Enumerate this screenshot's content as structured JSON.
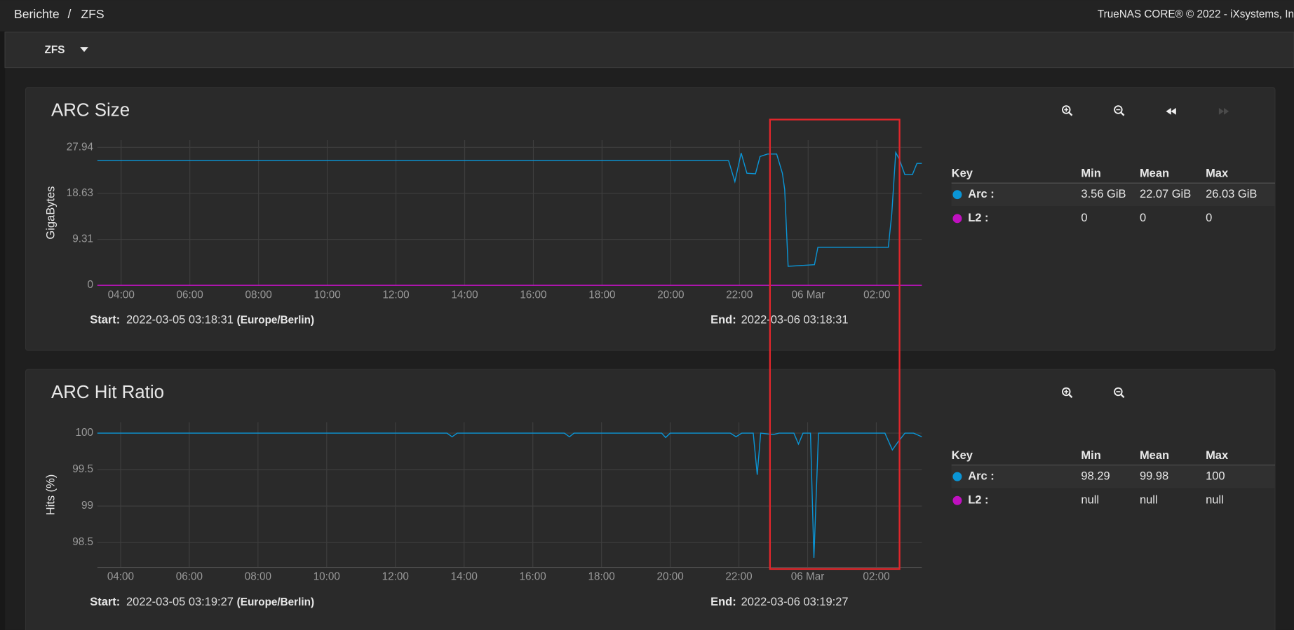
{
  "header": {
    "breadcrumb": [
      "Berichte",
      "ZFS"
    ],
    "separator": "/",
    "copyright": "TrueNAS CORE® © 2022 - iXsystems, In"
  },
  "toolbar": {
    "dropdown": "ZFS"
  },
  "chart_data": [
    {
      "type": "line",
      "title": "ARC Size",
      "y_label": "GigaBytes",
      "grid": true,
      "xlim": [
        "2022-03-05 03:18:31",
        "2022-03-06 03:18:31"
      ],
      "xticks": [
        {
          "value": "2022-03-05 04:00",
          "label": "04:00"
        },
        {
          "value": "2022-03-05 06:00",
          "label": "06:00"
        },
        {
          "value": "2022-03-05 08:00",
          "label": "08:00"
        },
        {
          "value": "2022-03-05 10:00",
          "label": "10:00"
        },
        {
          "value": "2022-03-05 12:00",
          "label": "12:00"
        },
        {
          "value": "2022-03-05 14:00",
          "label": "14:00"
        },
        {
          "value": "2022-03-05 16:00",
          "label": "16:00"
        },
        {
          "value": "2022-03-05 18:00",
          "label": "18:00"
        },
        {
          "value": "2022-03-05 20:00",
          "label": "20:00"
        },
        {
          "value": "2022-03-05 22:00",
          "label": "22:00"
        },
        {
          "value": "2022-03-06 00:00",
          "label": "06 Mar"
        },
        {
          "value": "2022-03-06 02:00",
          "label": "02:00"
        }
      ],
      "ylim": [
        0,
        29.4
      ],
      "yticks": [
        0,
        9.31,
        18.63,
        27.94
      ],
      "x": [
        "2022-03-05 03:18:31",
        "2022-03-05 06:00",
        "2022-03-05 10:00",
        "2022-03-05 14:00",
        "2022-03-05 18:00",
        "2022-03-05 21:30",
        "2022-03-05 21:41",
        "2022-03-05 21:52",
        "2022-03-05 22:03",
        "2022-03-05 22:13",
        "2022-03-05 22:28",
        "2022-03-05 22:36",
        "2022-03-05 22:49",
        "2022-03-05 23:05",
        "2022-03-05 23:15",
        "2022-03-05 23:19",
        "2022-03-05 23:25",
        "2022-03-06 00:11",
        "2022-03-06 00:17",
        "2022-03-06 01:27",
        "2022-03-06 02:20",
        "2022-03-06 02:26",
        "2022-03-06 02:33",
        "2022-03-06 02:39",
        "2022-03-06 02:49",
        "2022-03-06 03:02",
        "2022-03-06 03:10",
        "2022-03-06 03:18:31"
      ],
      "series": [
        {
          "name": "Arc :",
          "color": "#0a95d6",
          "values": [
            25.25,
            25.25,
            25.25,
            25.25,
            25.25,
            25.25,
            25.25,
            21.0,
            26.8,
            22.7,
            22.6,
            26.1,
            26.6,
            26.6,
            22.7,
            19.4,
            3.85,
            4.18,
            7.7,
            7.7,
            7.7,
            14.4,
            26.9,
            25.6,
            22.4,
            22.4,
            24.7,
            24.7
          ]
        },
        {
          "name": "L2 :",
          "color": "#c010c0",
          "values": [
            0,
            0,
            0,
            0,
            0,
            0,
            0,
            0,
            0,
            0,
            0,
            0,
            0,
            0,
            0,
            0,
            0,
            0,
            0,
            0,
            0,
            0,
            0,
            0,
            0,
            0,
            0,
            0
          ]
        }
      ],
      "stats": {
        "columns": [
          "Key",
          "Min",
          "Mean",
          "Max"
        ],
        "rows": [
          [
            "3.56 GiB",
            "22.07 GiB",
            "26.03 GiB"
          ],
          [
            0,
            0,
            0
          ]
        ]
      },
      "start_label": "Start:",
      "start": "2022-03-05 03:18:31",
      "timezone": "(Europe/Berlin)",
      "end_label": "End:",
      "end": "2022-03-06 03:18:31"
    },
    {
      "type": "line",
      "title": "ARC Hit Ratio",
      "y_label": "Hits (%)",
      "grid": true,
      "xlim": [
        "2022-03-05 03:19:27",
        "2022-03-06 03:19:27"
      ],
      "xticks": [
        {
          "value": "2022-03-05 04:00",
          "label": "04:00"
        },
        {
          "value": "2022-03-05 06:00",
          "label": "06:00"
        },
        {
          "value": "2022-03-05 08:00",
          "label": "08:00"
        },
        {
          "value": "2022-03-05 10:00",
          "label": "10:00"
        },
        {
          "value": "2022-03-05 12:00",
          "label": "12:00"
        },
        {
          "value": "2022-03-05 14:00",
          "label": "14:00"
        },
        {
          "value": "2022-03-05 16:00",
          "label": "16:00"
        },
        {
          "value": "2022-03-05 18:00",
          "label": "18:00"
        },
        {
          "value": "2022-03-05 20:00",
          "label": "20:00"
        },
        {
          "value": "2022-03-05 22:00",
          "label": "22:00"
        },
        {
          "value": "2022-03-06 00:00",
          "label": "06 Mar"
        },
        {
          "value": "2022-03-06 02:00",
          "label": "02:00"
        }
      ],
      "ylim": [
        98.16,
        100.15
      ],
      "yticks": [
        98.5,
        99,
        99.5,
        100
      ],
      "x": [
        "2022-03-05 03:19:27",
        "2022-03-05 13:30",
        "2022-03-05 13:39",
        "2022-03-05 13:48",
        "2022-03-05 16:55",
        "2022-03-05 17:04",
        "2022-03-05 17:12",
        "2022-03-05 19:45",
        "2022-03-05 19:52",
        "2022-03-05 20:00",
        "2022-03-05 21:45",
        "2022-03-05 21:55",
        "2022-03-05 22:05",
        "2022-03-05 22:25",
        "2022-03-05 22:32",
        "2022-03-05 22:38",
        "2022-03-05 23:00",
        "2022-03-05 23:10",
        "2022-03-05 23:36",
        "2022-03-05 23:44",
        "2022-03-05 23:52",
        "2022-03-06 00:05",
        "2022-03-06 00:11",
        "2022-03-06 00:19",
        "2022-03-06 02:15",
        "2022-03-06 02:28",
        "2022-03-06 02:38",
        "2022-03-06 02:50",
        "2022-03-06 03:05",
        "2022-03-06 03:19:27"
      ],
      "series": [
        {
          "name": "Arc :",
          "color": "#0a95d6",
          "values": [
            100,
            100,
            99.95,
            100,
            100,
            99.95,
            100,
            100,
            99.94,
            100,
            100,
            99.95,
            100,
            100,
            99.43,
            100,
            99.98,
            100,
            100,
            99.85,
            100,
            100,
            98.29,
            100,
            100,
            99.77,
            99.88,
            100,
            100,
            99.95
          ]
        },
        {
          "name": "L2 :",
          "color": "#c010c0",
          "values": [
            null,
            null,
            null,
            null,
            null,
            null,
            null,
            null,
            null,
            null,
            null,
            null,
            null,
            null,
            null,
            null,
            null,
            null,
            null,
            null,
            null,
            null,
            null,
            null,
            null,
            null,
            null,
            null,
            null,
            null
          ]
        }
      ],
      "stats": {
        "columns": [
          "Key",
          "Min",
          "Mean",
          "Max"
        ],
        "rows": [
          [
            98.29,
            99.98,
            100
          ],
          [
            "null",
            "null",
            "null"
          ]
        ]
      },
      "start_label": "Start:",
      "start": "2022-03-05 03:19:27",
      "timezone": "(Europe/Berlin)",
      "end_label": "End:",
      "end": "2022-03-06 03:19:27"
    }
  ]
}
